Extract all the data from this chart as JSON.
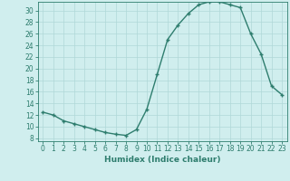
{
  "x": [
    0,
    1,
    2,
    3,
    4,
    5,
    6,
    7,
    8,
    9,
    10,
    11,
    12,
    13,
    14,
    15,
    16,
    17,
    18,
    19,
    20,
    21,
    22,
    23
  ],
  "y": [
    12.5,
    12.0,
    11.0,
    10.5,
    10.0,
    9.5,
    9.0,
    8.7,
    8.5,
    9.5,
    13.0,
    19.0,
    25.0,
    27.5,
    29.5,
    31.0,
    31.5,
    31.5,
    31.0,
    30.5,
    26.0,
    22.5,
    17.0,
    15.5
  ],
  "line_color": "#2e7d6e",
  "marker": "+",
  "marker_size": 3.5,
  "bg_color": "#d0eeee",
  "grid_color": "#b0d8d8",
  "xlabel": "Humidex (Indice chaleur)",
  "xlim": [
    -0.5,
    23.5
  ],
  "ylim": [
    7.5,
    31.5
  ],
  "yticks": [
    8,
    10,
    12,
    14,
    16,
    18,
    20,
    22,
    24,
    26,
    28,
    30
  ],
  "xticks": [
    0,
    1,
    2,
    3,
    4,
    5,
    6,
    7,
    8,
    9,
    10,
    11,
    12,
    13,
    14,
    15,
    16,
    17,
    18,
    19,
    20,
    21,
    22,
    23
  ],
  "label_fontsize": 6.5,
  "tick_fontsize": 5.5,
  "line_width": 1.0
}
